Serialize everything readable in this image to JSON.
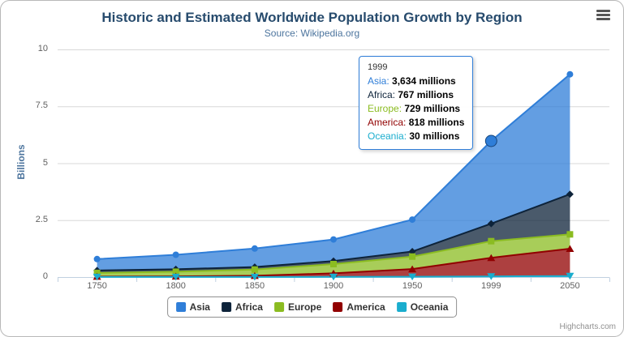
{
  "title": "Historic and Estimated Worldwide Population Growth by Region",
  "subtitle": "Source: Wikipedia.org",
  "credits": "Highcharts.com",
  "icons": {
    "menu": "hamburger-menu-icon"
  },
  "y_axis": {
    "title": "Billions",
    "ticks": [
      "0",
      "2.5",
      "5",
      "7.5",
      "10"
    ]
  },
  "x_axis": {
    "categories": [
      "1750",
      "1800",
      "1850",
      "1900",
      "1950",
      "1999",
      "2050"
    ]
  },
  "legend": {
    "items": [
      {
        "label": "Asia",
        "color": "#2f7ed8"
      },
      {
        "label": "Africa",
        "color": "#0d233a"
      },
      {
        "label": "Europe",
        "color": "#8bbc21"
      },
      {
        "label": "America",
        "color": "#910000"
      },
      {
        "label": "Oceania",
        "color": "#1aadce"
      }
    ]
  },
  "tooltip": {
    "header": "1999",
    "rows": [
      {
        "name": "Asia",
        "value": "3,634 millions",
        "color": "#2f7ed8"
      },
      {
        "name": "Africa",
        "value": "767 millions",
        "color": "#0d233a"
      },
      {
        "name": "Europe",
        "value": "729 millions",
        "color": "#8bbc21"
      },
      {
        "name": "America",
        "value": "818 millions",
        "color": "#910000"
      },
      {
        "name": "Oceania",
        "value": "30 millions",
        "color": "#1aadce"
      }
    ]
  },
  "chart_data": {
    "type": "area",
    "stacking": "normal",
    "unit": "millions",
    "title": "Historic and Estimated Worldwide Population Growth by Region",
    "subtitle": "Source: Wikipedia.org",
    "xlabel": "",
    "ylabel": "Billions",
    "ylim": [
      0,
      10
    ],
    "grid": true,
    "legend_position": "bottom",
    "categories": [
      "1750",
      "1800",
      "1850",
      "1900",
      "1950",
      "1999",
      "2050"
    ],
    "series": [
      {
        "name": "Asia",
        "color": "#2f7ed8",
        "marker": "circle",
        "values": [
          502,
          635,
          809,
          947,
          1402,
          3634,
          5268
        ]
      },
      {
        "name": "Africa",
        "color": "#0d233a",
        "marker": "diamond",
        "values": [
          106,
          107,
          111,
          133,
          221,
          767,
          1766
        ]
      },
      {
        "name": "Europe",
        "color": "#8bbc21",
        "marker": "square",
        "values": [
          163,
          203,
          276,
          408,
          547,
          729,
          628
        ]
      },
      {
        "name": "America",
        "color": "#910000",
        "marker": "triangle",
        "values": [
          18,
          31,
          54,
          156,
          339,
          818,
          1201
        ]
      },
      {
        "name": "Oceania",
        "color": "#1aadce",
        "marker": "triangle-down",
        "values": [
          2,
          2,
          2,
          6,
          13,
          30,
          46
        ]
      }
    ],
    "hover_point": {
      "series": "Asia",
      "category": "1999",
      "stacked_total_millions": 5978
    }
  }
}
